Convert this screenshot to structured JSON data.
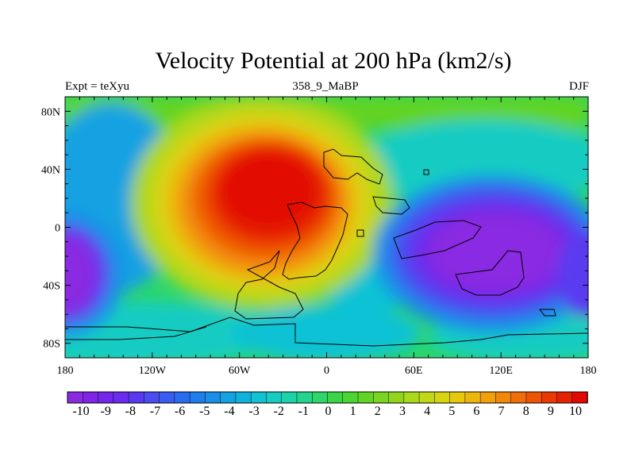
{
  "title": "Velocity Potential at 200 hPa (km2/s)",
  "subtitle_left": "Expt = teXyu",
  "subtitle_center": "358_9_MaBP",
  "subtitle_right": "DJF",
  "map": {
    "lon_ticks": [
      "180",
      "120W",
      "60W",
      "0",
      "60E",
      "120E",
      "180"
    ],
    "lat_ticks": [
      "80N",
      "40N",
      "0",
      "40S",
      "80S"
    ],
    "lon_range": [
      -180,
      180
    ],
    "lat_range": [
      -90,
      90
    ]
  },
  "colorbar": {
    "labels": [
      "-10",
      "-9",
      "-8",
      "-7",
      "-6",
      "-5",
      "-4",
      "-3",
      "-2",
      "-1",
      "0",
      "1",
      "2",
      "3",
      "4",
      "5",
      "6",
      "7",
      "8",
      "9",
      "10"
    ],
    "colors": [
      "#8a2be2",
      "#7f25e6",
      "#7426ea",
      "#6a2cee",
      "#5a3af0",
      "#4a4cf0",
      "#3a5cf0",
      "#2a6cf0",
      "#1e7eee",
      "#1890e8",
      "#14a2e2",
      "#10b2dc",
      "#10c2d4",
      "#14ccc2",
      "#1cd2a8",
      "#24d48c",
      "#2cd66a",
      "#3ad448",
      "#4cd430",
      "#62d424",
      "#7ad420",
      "#92d61c",
      "#aad81a",
      "#c2d816",
      "#d8d412",
      "#e6c80e",
      "#eeb60c",
      "#f2a00a",
      "#f28808",
      "#f06e08",
      "#ee5406",
      "#ea3a04",
      "#e62202",
      "#e20a00"
    ]
  },
  "chart_data": {
    "type": "heatmap",
    "title": "Velocity Potential at 200 hPa (km2/s)",
    "variable": "velocity potential",
    "units": "km2/s",
    "level": "200 hPa",
    "season": "DJF",
    "experiment": "teXyu",
    "x_range": [
      -180,
      180
    ],
    "y_range": [
      -90,
      90
    ],
    "value_range": [
      -10,
      10
    ],
    "features": [
      {
        "type": "max",
        "lon": -50,
        "lat": 10,
        "value": 10
      },
      {
        "type": "min",
        "lon": 130,
        "lat": -20,
        "value": -10
      },
      {
        "type": "min",
        "lon": -180,
        "lat": -25,
        "value": -9.5
      },
      {
        "type": "min",
        "lon": 180,
        "lat": -25,
        "value": -9.5
      }
    ]
  }
}
